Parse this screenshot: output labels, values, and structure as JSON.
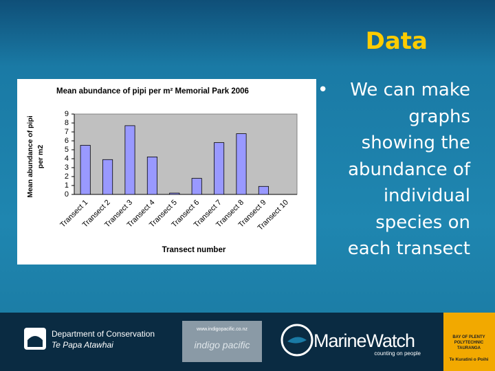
{
  "slide": {
    "title": "Data",
    "bullet_lines": [
      "We can make",
      "graphs",
      "showing the",
      "abundance of",
      "individual",
      "species on",
      "each transect"
    ]
  },
  "chart_data": {
    "type": "bar",
    "title": "Mean abundance of pipi per m² Memorial Park 2006",
    "ylabel": [
      "Mean abundance of pipi",
      "per m2"
    ],
    "xlabel": "Transect number",
    "categories": [
      "Transect 1",
      "Transect 2",
      "Transect 3",
      "Transect 4",
      "Transect 5",
      "Transect 6",
      "Transect 7",
      "Transect 8",
      "Transect 9",
      "Transect 10"
    ],
    "values": [
      5.5,
      3.9,
      7.7,
      4.2,
      0.15,
      1.8,
      5.8,
      6.8,
      0.9,
      0
    ],
    "color": "#9999ff",
    "ylim": [
      0,
      9
    ],
    "yticks": [
      0,
      1,
      2,
      3,
      4,
      5,
      6,
      7,
      8,
      9
    ],
    "grid": false
  },
  "footer": {
    "doc": [
      "Department of Conservation",
      "Te Papa Atawhai"
    ],
    "indigo": [
      "www.indigopacific.co.nz",
      "indigo pacific"
    ],
    "marinewatch": [
      "MarineWatch",
      "counting on people"
    ],
    "polytechnic": [
      "BAY OF PLENTY",
      "POLYTECHNIC",
      "TAURANGA",
      "Te Kuratini o Poihi"
    ]
  }
}
